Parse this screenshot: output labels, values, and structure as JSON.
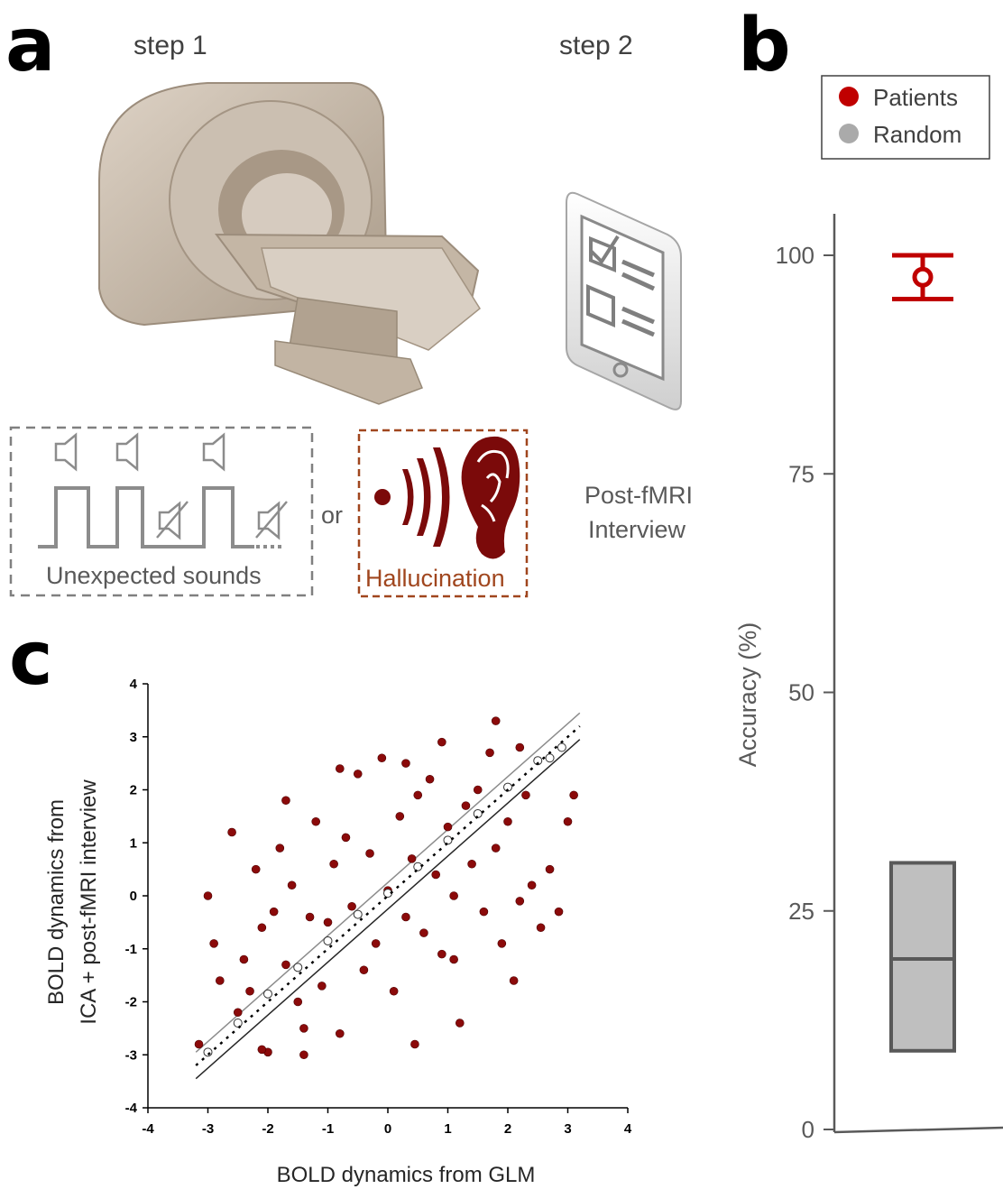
{
  "panels": {
    "a": {
      "letter": "a",
      "step1": "step 1",
      "step2": "step 2",
      "or_text": "or",
      "unexpected_label": "Unexpected sounds",
      "hallucination_label": "Hallucination",
      "interview_line1": "Post-fMRI",
      "interview_line2": "Interview",
      "colors": {
        "dark_red": "#7b0a0a",
        "scanner": "#c7b9a8",
        "gray": "#808080",
        "brown_dash": "#a0461e"
      }
    },
    "b": {
      "letter": "b",
      "legend": [
        {
          "label": "Patients",
          "color": "#c00000"
        },
        {
          "label": "Random",
          "color": "#aaaaaa"
        }
      ]
    },
    "c": {
      "letter": "c"
    }
  },
  "chart_data": [
    {
      "type": "scatter",
      "panel": "b",
      "ylabel": "Accuracy (%)",
      "ylim": [
        0,
        100
      ],
      "yticks": [
        "0",
        "25",
        "50",
        "75",
        "100"
      ],
      "series": [
        {
          "name": "Patients",
          "color": "#c00000",
          "kind": "errorbar",
          "mean": 97.5,
          "lower": 95,
          "upper": 100
        },
        {
          "name": "Random",
          "color": "#bfbfbf",
          "kind": "box",
          "q1": 9,
          "median": 19.5,
          "q3": 30.5
        }
      ]
    },
    {
      "type": "scatter",
      "panel": "c",
      "xlabel": "BOLD dynamics from GLM",
      "ylabel_line1": "BOLD dynamics from",
      "ylabel_line2": "ICA + post-fMRI interview",
      "xlim": [
        -4,
        4
      ],
      "ylim": [
        -4,
        4
      ],
      "xticks": [
        "-4",
        "-3",
        "-2",
        "-1",
        "0",
        "1",
        "2",
        "3",
        "4"
      ],
      "yticks": [
        "4",
        "3",
        "2",
        "1",
        "0",
        "-1",
        "-2",
        "-3",
        "-4"
      ],
      "series": [
        {
          "color": "#8b0a0a",
          "points": [
            [
              -3.15,
              -2.8
            ],
            [
              -3.0,
              0.0
            ],
            [
              -2.9,
              -0.9
            ],
            [
              -2.6,
              1.2
            ],
            [
              -2.5,
              -2.2
            ],
            [
              -2.4,
              -1.2
            ],
            [
              -2.3,
              -1.8
            ],
            [
              -2.2,
              0.5
            ],
            [
              -2.1,
              -0.6
            ],
            [
              -2.0,
              -2.95
            ],
            [
              -2.1,
              -2.9
            ],
            [
              -1.9,
              -0.3
            ],
            [
              -1.8,
              0.9
            ],
            [
              -1.7,
              -1.3
            ],
            [
              -1.6,
              0.2
            ],
            [
              -1.5,
              -2.0
            ],
            [
              -1.4,
              -3.0
            ],
            [
              -1.3,
              -0.4
            ],
            [
              -1.2,
              1.4
            ],
            [
              -1.1,
              -1.7
            ],
            [
              -1.0,
              -0.5
            ],
            [
              -0.9,
              0.6
            ],
            [
              -0.8,
              -2.6
            ],
            [
              -0.7,
              1.1
            ],
            [
              -0.6,
              -0.2
            ],
            [
              -0.5,
              2.3
            ],
            [
              -0.4,
              -1.4
            ],
            [
              -0.3,
              0.8
            ],
            [
              -0.2,
              -0.9
            ],
            [
              -0.1,
              2.6
            ],
            [
              0.0,
              0.1
            ],
            [
              0.1,
              -1.8
            ],
            [
              0.2,
              1.5
            ],
            [
              0.3,
              -0.4
            ],
            [
              0.4,
              0.7
            ],
            [
              0.45,
              -2.8
            ],
            [
              0.5,
              1.9
            ],
            [
              0.6,
              -0.7
            ],
            [
              0.7,
              2.2
            ],
            [
              0.8,
              0.4
            ],
            [
              0.9,
              -1.1
            ],
            [
              1.0,
              1.3
            ],
            [
              1.1,
              0.0
            ],
            [
              1.2,
              -2.4
            ],
            [
              1.3,
              1.7
            ],
            [
              1.4,
              0.6
            ],
            [
              1.5,
              2.0
            ],
            [
              1.6,
              -0.3
            ],
            [
              1.7,
              2.7
            ],
            [
              1.8,
              0.9
            ],
            [
              1.9,
              -0.9
            ],
            [
              2.0,
              1.4
            ],
            [
              2.1,
              -1.6
            ],
            [
              2.2,
              -0.1
            ],
            [
              2.3,
              1.9
            ],
            [
              2.4,
              0.2
            ],
            [
              2.55,
              -0.6
            ],
            [
              2.7,
              0.5
            ],
            [
              2.85,
              -0.3
            ],
            [
              3.0,
              1.4
            ],
            [
              3.1,
              1.9
            ],
            [
              1.8,
              3.3
            ],
            [
              2.2,
              2.8
            ],
            [
              -1.7,
              1.8
            ],
            [
              -0.8,
              2.4
            ],
            [
              0.3,
              2.5
            ],
            [
              -2.8,
              -1.6
            ],
            [
              1.1,
              -1.2
            ],
            [
              0.9,
              2.9
            ],
            [
              -1.4,
              -2.5
            ]
          ]
        },
        {
          "color": "#ffffff",
          "points": [
            [
              -3.0,
              -2.95
            ],
            [
              -2.5,
              -2.4
            ],
            [
              -2.0,
              -1.85
            ],
            [
              -1.5,
              -1.35
            ],
            [
              -1.0,
              -0.85
            ],
            [
              -0.5,
              -0.35
            ],
            [
              0.0,
              0.05
            ],
            [
              0.5,
              0.55
            ],
            [
              1.0,
              1.05
            ],
            [
              1.5,
              1.55
            ],
            [
              2.0,
              2.05
            ],
            [
              2.5,
              2.55
            ],
            [
              2.7,
              2.6
            ],
            [
              2.9,
              2.8
            ]
          ]
        }
      ],
      "fit_line": {
        "slope": 1.0,
        "intercept": 0.0
      }
    }
  ]
}
